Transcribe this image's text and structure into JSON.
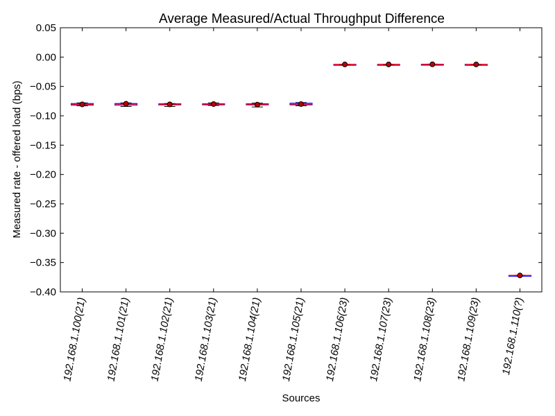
{
  "chart_data": {
    "type": "box",
    "title": "Average Measured/Actual Throughput Difference",
    "xlabel": "Sources",
    "ylabel": "Measured rate - offered load (bps)",
    "ylim": [
      -0.4,
      0.05
    ],
    "yticks": [
      "0.05",
      "0.00",
      "−0.05",
      "−0.10",
      "−0.15",
      "−0.20",
      "−0.25",
      "−0.30",
      "−0.35",
      "−0.40"
    ],
    "ytick_values": [
      0.05,
      0.0,
      -0.05,
      -0.1,
      -0.15,
      -0.2,
      -0.25,
      -0.3,
      -0.35,
      -0.4
    ],
    "grid": false,
    "categories": [
      "192.168.1.100(21)",
      "192.168.1.101(21)",
      "192.168.1.102(21)",
      "192.168.1.103(21)",
      "192.168.1.104(21)",
      "192.168.1.105(21)",
      "192.168.1.106(23)",
      "192.168.1.107(23)",
      "192.168.1.108(23)",
      "192.168.1.109(23)",
      "192.168.1.110(?)"
    ],
    "boxes": [
      {
        "whisker_low": -0.083,
        "q1": -0.082,
        "median": -0.0805,
        "q3": -0.079,
        "whisker_high": -0.078,
        "mean": -0.0805
      },
      {
        "whisker_low": -0.084,
        "q1": -0.082,
        "median": -0.08,
        "q3": -0.079,
        "whisker_high": -0.078,
        "mean": -0.0795
      },
      {
        "whisker_low": -0.084,
        "q1": -0.0815,
        "median": -0.0805,
        "q3": -0.0795,
        "whisker_high": -0.079,
        "mean": -0.0805
      },
      {
        "whisker_low": -0.0825,
        "q1": -0.0815,
        "median": -0.0805,
        "q3": -0.0795,
        "whisker_high": -0.078,
        "mean": -0.08
      },
      {
        "whisker_low": -0.085,
        "q1": -0.0815,
        "median": -0.0805,
        "q3": -0.0795,
        "whisker_high": -0.0785,
        "mean": -0.081
      },
      {
        "whisker_low": -0.083,
        "q1": -0.0815,
        "median": -0.08,
        "q3": -0.0785,
        "whisker_high": -0.0775,
        "mean": -0.08
      },
      {
        "whisker_low": -0.013,
        "q1": -0.0127,
        "median": -0.0125,
        "q3": -0.0123,
        "whisker_high": -0.012,
        "mean": -0.0125
      },
      {
        "whisker_low": -0.013,
        "q1": -0.0127,
        "median": -0.0125,
        "q3": -0.0123,
        "whisker_high": -0.012,
        "mean": -0.0125
      },
      {
        "whisker_low": -0.0128,
        "q1": -0.0125,
        "median": -0.0123,
        "q3": -0.0121,
        "whisker_high": -0.0118,
        "mean": -0.0123
      },
      {
        "whisker_low": -0.013,
        "q1": -0.0127,
        "median": -0.0125,
        "q3": -0.0123,
        "whisker_high": -0.012,
        "mean": -0.0125
      },
      {
        "whisker_low": -0.3725,
        "q1": -0.3722,
        "median": -0.372,
        "q3": -0.3718,
        "whisker_high": -0.3715,
        "mean": -0.372
      }
    ],
    "colors": {
      "box": "#0000ff",
      "whisker": "#000000",
      "median": "#ff0000",
      "mean_marker": "#c00000",
      "axes": "#000000"
    }
  }
}
